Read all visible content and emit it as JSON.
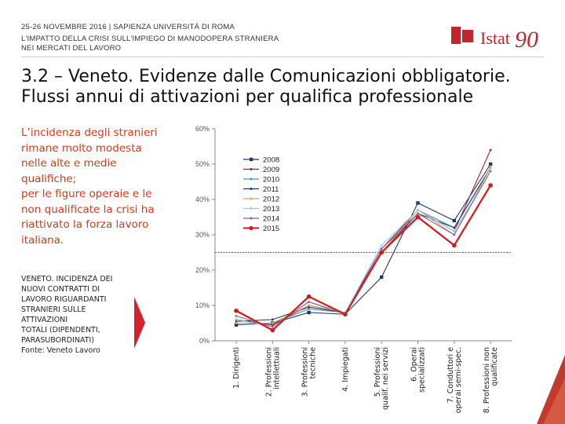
{
  "header": {
    "line1": "25-26 NOVEMBRE 2016 | SAPIENZA UNIVERSITÀ DI ROMA",
    "line2": "L'IMPATTO DELLA CRISI SULL'IMPIEGO DI MANODOPERA STRANIERA",
    "line3": "NEI MERCATI DEL LAVORO",
    "logo_text": "Istat",
    "logo_number": "90"
  },
  "title": {
    "line1": "3.2 – Veneto. Evidenze dalle Comunicazioni obbligatorie.",
    "line2": "Flussi annui di attivazioni per qualifica professionale"
  },
  "intro": {
    "lines": [
      "L’incidenza degli stranieri",
      "rimane molto modesta",
      "nelle alte e medie",
      "qualifiche;",
      "per le figure operaie e le",
      "non qualificate la crisi ha",
      "riattivato la forza lavoro",
      "italiana."
    ]
  },
  "caption": {
    "lines": [
      "VENETO. INCIDENZA DEI",
      "NUOVI CONTRATTI DI",
      "LAVORO RIGUARDANTI",
      "STRANIERI SULLE",
      "ATTIVAZIONI",
      "TOTALI (DIPENDENTI,",
      "PARASUBORDINATI)",
      "Fonte: Veneto Lavoro"
    ]
  },
  "colors": {
    "accent_red": "#c8401f",
    "logo_red": "#c0272d",
    "arrow_red": "#d6212e",
    "reference_line": "#d9282f"
  },
  "chart_data": {
    "type": "line",
    "categories": [
      "1. Dirigenti",
      "2. Professioni intellettuali",
      "3. Professioni tecniche",
      "4. Impiegati",
      "5. Professioni qualif. nei servizi",
      "6. Operai specializzati",
      "7. Conduttori e operai semi-spec.",
      "8. Professioni non qualificate"
    ],
    "category_lines": [
      [
        "1. Dirigenti"
      ],
      [
        "2. Professioni",
        "intellettuali"
      ],
      [
        "3. Professioni",
        "tecniche"
      ],
      [
        "4. Impiegati"
      ],
      [
        "5. Professioni",
        "qualif. nei servizi"
      ],
      [
        "6. Operai",
        "specializzati"
      ],
      [
        "7. Conduttori e",
        "operai semi-spec."
      ],
      [
        "8. Professioni non",
        "qualificate"
      ]
    ],
    "y_ticks": [
      "0%",
      "10%",
      "20%",
      "30%",
      "40%",
      "50%",
      "60%"
    ],
    "ylim": [
      0,
      60
    ],
    "grid": false,
    "legend_position": "top-right",
    "reference_line": 25,
    "series": [
      {
        "name": "2008",
        "color": "#1f3864",
        "values": [
          4.5,
          5,
          8,
          7.5,
          18,
          39,
          34,
          50
        ]
      },
      {
        "name": "2009",
        "color": "#9b2335",
        "values": [
          6,
          4.5,
          10,
          8,
          26,
          37,
          31,
          54
        ]
      },
      {
        "name": "2010",
        "color": "#4a90c2",
        "values": [
          5,
          5,
          9,
          8,
          25,
          37,
          32,
          49
        ]
      },
      {
        "name": "2011",
        "color": "#223a5e",
        "values": [
          5.5,
          6,
          9.5,
          8,
          25,
          36,
          32,
          49
        ]
      },
      {
        "name": "2012",
        "color": "#e0a458",
        "values": [
          5,
          5,
          10,
          8,
          25,
          37,
          30,
          49
        ]
      },
      {
        "name": "2013",
        "color": "#9ecae1",
        "values": [
          6,
          4,
          11,
          8,
          27,
          37,
          31,
          48
        ]
      },
      {
        "name": "2014",
        "color": "#8064a2",
        "values": [
          7,
          4,
          11,
          7.5,
          26,
          36,
          30,
          48
        ]
      },
      {
        "name": "2015",
        "color": "#d7191c",
        "values": [
          8.5,
          3,
          12.5,
          7.5,
          25,
          35,
          27,
          44
        ]
      }
    ]
  }
}
